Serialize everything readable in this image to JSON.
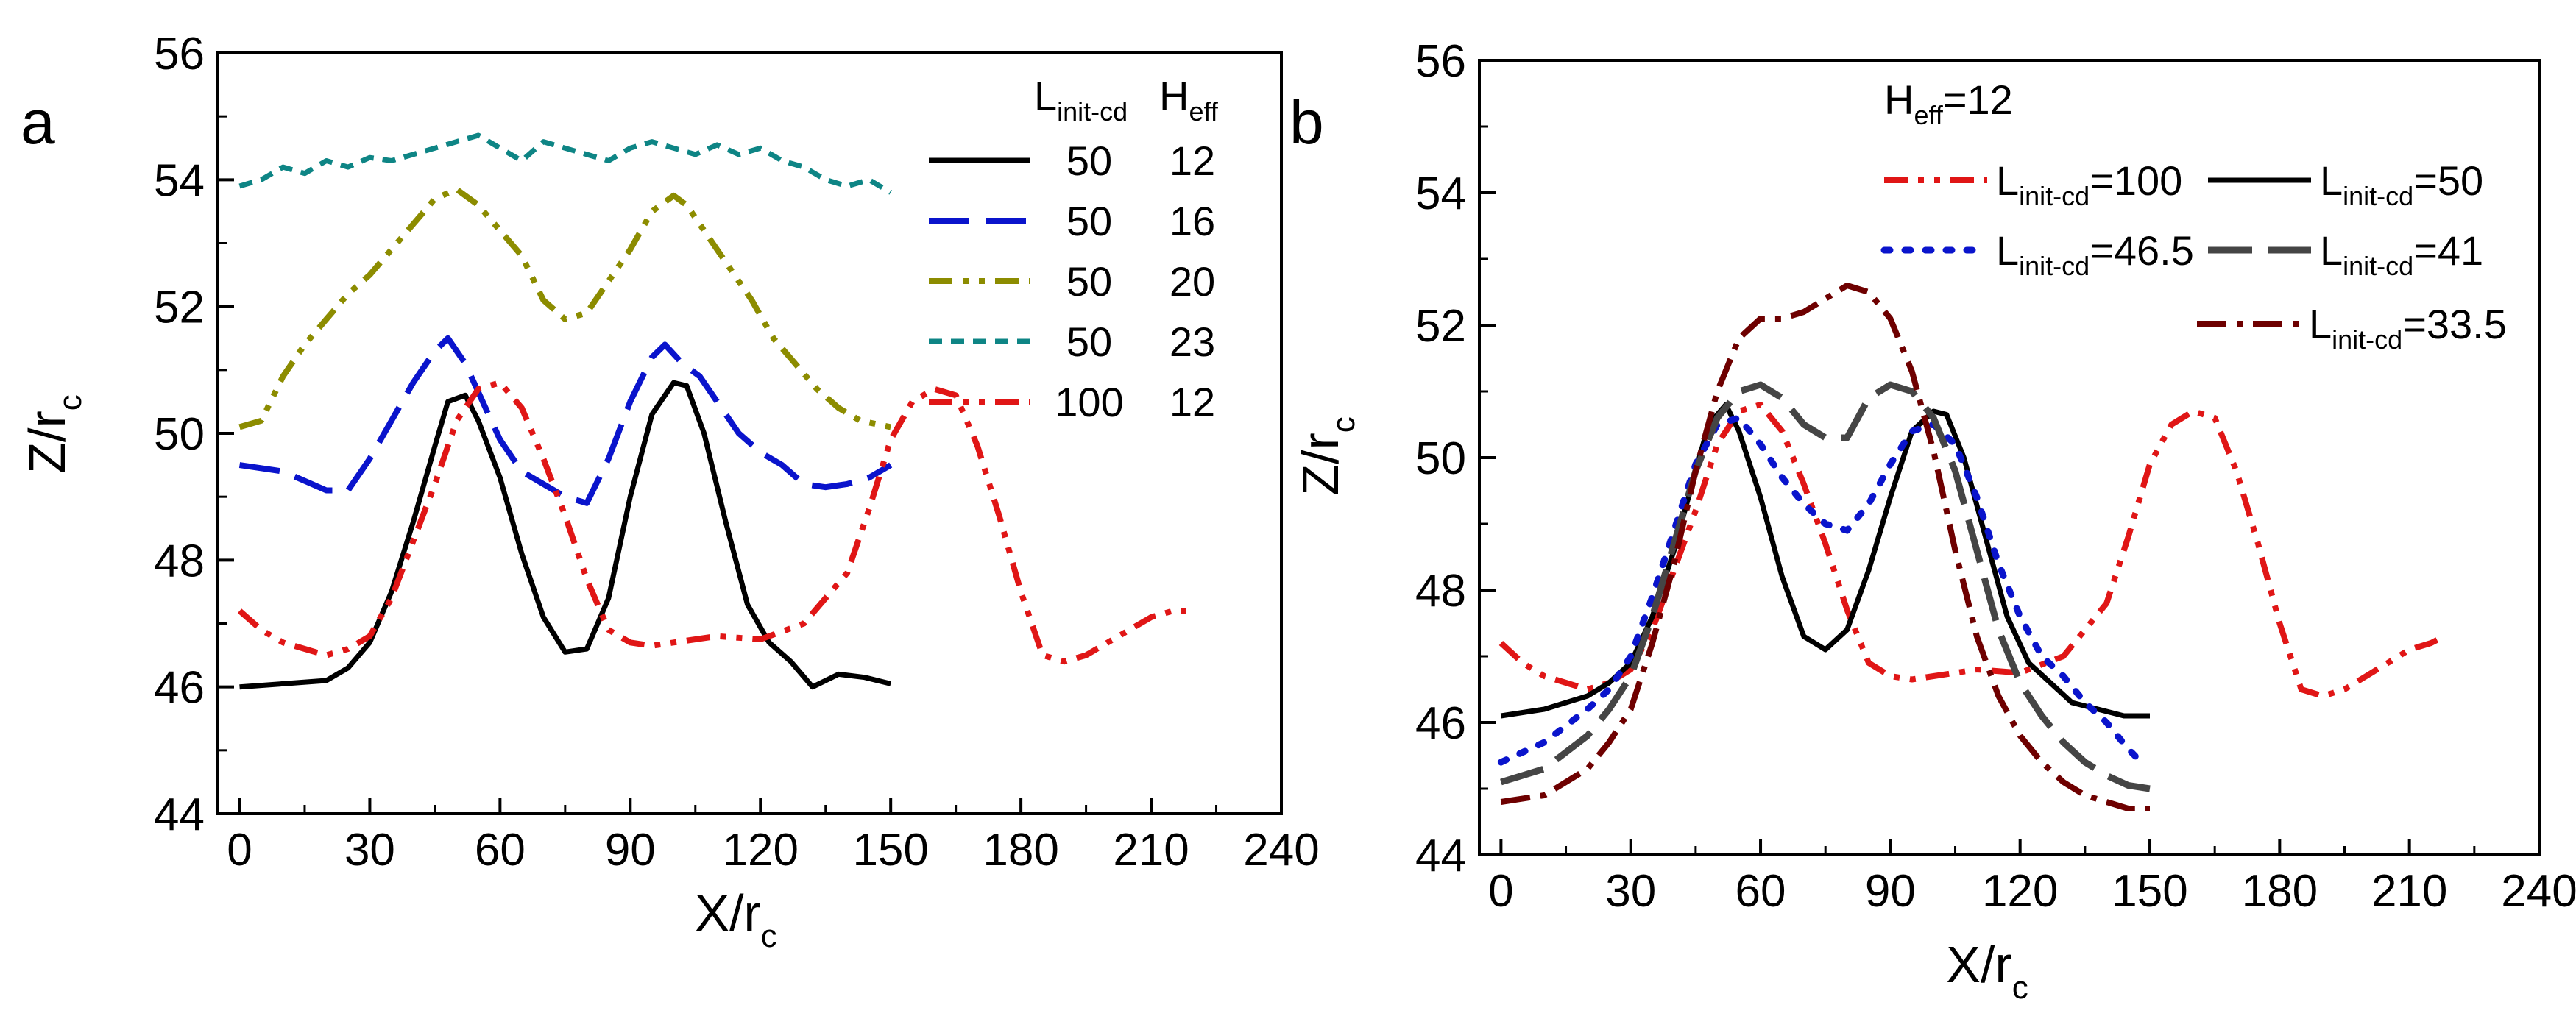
{
  "figure": {
    "panels": [
      {
        "id": "a",
        "letter": "a",
        "legend_headers": {
          "col1_main": "L",
          "col1_sub": "init-cd",
          "col2_main": "H",
          "col2_sub": "eff"
        }
      },
      {
        "id": "b",
        "letter": "b",
        "legend_title": {
          "main": "H",
          "sub": "eff",
          "rest": "=12"
        }
      }
    ]
  },
  "colors": {
    "black": "#000000",
    "blue": "#0a14cc",
    "olive": "#8c8c00",
    "teal": "#0e8585",
    "red": "#e01616",
    "gray": "#454545",
    "darkred": "#6e0000"
  },
  "chart_data": [
    {
      "type": "line",
      "panel": "a",
      "xlabel": "X/r",
      "xlabel_sub": "c",
      "ylabel": "Z/r",
      "ylabel_sub": "c",
      "xlim": [
        -5,
        240
      ],
      "ylim": [
        44,
        56
      ],
      "xticks": [
        0,
        30,
        60,
        90,
        120,
        150,
        180,
        210,
        240
      ],
      "yticks": [
        44,
        46,
        48,
        50,
        52,
        54,
        56
      ],
      "series": [
        {
          "name": "L=50, H=12",
          "legend_col1": "50",
          "legend_col2": "12",
          "color_key": "black",
          "style": "solid",
          "x": [
            0,
            10,
            20,
            25,
            30,
            35,
            40,
            45,
            48,
            52,
            55,
            60,
            65,
            70,
            75,
            80,
            85,
            90,
            95,
            100,
            103,
            107,
            112,
            117,
            122,
            127,
            132,
            138,
            144,
            150
          ],
          "y": [
            46.0,
            46.05,
            46.1,
            46.3,
            46.7,
            47.5,
            48.6,
            49.8,
            50.5,
            50.6,
            50.2,
            49.3,
            48.1,
            47.1,
            46.55,
            46.6,
            47.4,
            49.0,
            50.3,
            50.8,
            50.75,
            50.0,
            48.6,
            47.3,
            46.7,
            46.4,
            46.0,
            46.2,
            46.15,
            46.05
          ]
        },
        {
          "name": "L=50, H=16",
          "legend_col1": "50",
          "legend_col2": "16",
          "color_key": "blue",
          "style": "dash",
          "x": [
            0,
            10,
            20,
            25,
            30,
            35,
            40,
            45,
            48,
            52,
            56,
            60,
            65,
            70,
            75,
            80,
            85,
            90,
            95,
            98,
            102,
            106,
            110,
            115,
            120,
            125,
            130,
            135,
            140,
            145,
            150
          ],
          "y": [
            49.5,
            49.4,
            49.1,
            49.1,
            49.6,
            50.2,
            50.8,
            51.3,
            51.5,
            51.1,
            50.5,
            49.9,
            49.4,
            49.2,
            49.0,
            48.9,
            49.6,
            50.5,
            51.2,
            51.4,
            51.1,
            50.9,
            50.5,
            50.0,
            49.7,
            49.5,
            49.2,
            49.15,
            49.2,
            49.3,
            49.5
          ]
        },
        {
          "name": "L=50, H=20",
          "legend_col1": "50",
          "legend_col2": "20",
          "color_key": "olive",
          "style": "dashdotdot",
          "x": [
            0,
            5,
            10,
            15,
            20,
            25,
            30,
            35,
            40,
            45,
            50,
            55,
            60,
            65,
            70,
            75,
            80,
            85,
            90,
            95,
            100,
            103,
            108,
            113,
            118,
            123,
            128,
            133,
            138,
            143,
            150
          ],
          "y": [
            50.1,
            50.2,
            50.9,
            51.4,
            51.8,
            52.2,
            52.5,
            52.9,
            53.3,
            53.7,
            53.85,
            53.6,
            53.2,
            52.8,
            52.1,
            51.8,
            51.9,
            52.4,
            52.9,
            53.5,
            53.75,
            53.6,
            53.1,
            52.6,
            52.1,
            51.5,
            51.1,
            50.7,
            50.4,
            50.2,
            50.1
          ]
        },
        {
          "name": "L=50, H=23",
          "legend_col1": "50",
          "legend_col2": "23",
          "color_key": "teal",
          "style": "shortdash",
          "x": [
            0,
            5,
            10,
            15,
            20,
            25,
            30,
            35,
            40,
            45,
            50,
            55,
            60,
            65,
            70,
            75,
            80,
            85,
            90,
            95,
            100,
            105,
            110,
            115,
            120,
            125,
            130,
            135,
            140,
            145,
            150
          ],
          "y": [
            53.9,
            54.0,
            54.2,
            54.1,
            54.3,
            54.2,
            54.35,
            54.3,
            54.4,
            54.5,
            54.6,
            54.7,
            54.5,
            54.3,
            54.6,
            54.5,
            54.4,
            54.3,
            54.5,
            54.6,
            54.5,
            54.4,
            54.55,
            54.4,
            54.5,
            54.3,
            54.2,
            54.0,
            53.9,
            54.0,
            53.8
          ]
        },
        {
          "name": "L=100, H=12",
          "legend_col1": "100",
          "legend_col2": "12",
          "color_key": "red",
          "style": "dashdotdot",
          "x": [
            0,
            5,
            10,
            15,
            20,
            25,
            30,
            35,
            40,
            45,
            50,
            55,
            60,
            65,
            70,
            75,
            80,
            85,
            90,
            95,
            100,
            110,
            120,
            130,
            140,
            145,
            150,
            155,
            160,
            165,
            170,
            175,
            180,
            185,
            190,
            195,
            200,
            205,
            210,
            215,
            218
          ],
          "y": [
            47.2,
            46.9,
            46.7,
            46.6,
            46.5,
            46.6,
            46.8,
            47.4,
            48.3,
            49.2,
            50.2,
            50.7,
            50.8,
            50.4,
            49.6,
            48.7,
            47.7,
            46.9,
            46.7,
            46.65,
            46.7,
            46.8,
            46.75,
            47.0,
            47.8,
            48.8,
            49.9,
            50.5,
            50.7,
            50.6,
            49.8,
            48.7,
            47.5,
            46.5,
            46.4,
            46.5,
            46.7,
            46.9,
            47.1,
            47.2,
            47.2
          ]
        }
      ]
    },
    {
      "type": "line",
      "panel": "b",
      "xlabel": "X/r",
      "xlabel_sub": "c",
      "ylabel": "Z/r",
      "ylabel_sub": "c",
      "xlim": [
        -5,
        240
      ],
      "ylim": [
        44,
        56
      ],
      "xticks": [
        0,
        30,
        60,
        90,
        120,
        150,
        180,
        210,
        240
      ],
      "yticks": [
        44,
        46,
        48,
        50,
        52,
        54,
        56
      ],
      "series": [
        {
          "name": "L=100",
          "legend_main": "L",
          "legend_sub": "init-cd",
          "legend_value": "=100",
          "color_key": "red",
          "style": "dashdotdot",
          "x": [
            0,
            5,
            10,
            15,
            20,
            25,
            30,
            35,
            40,
            45,
            50,
            55,
            60,
            65,
            70,
            75,
            80,
            85,
            90,
            95,
            100,
            110,
            120,
            130,
            140,
            145,
            150,
            155,
            160,
            165,
            170,
            175,
            180,
            185,
            190,
            195,
            200,
            205,
            210,
            215,
            218
          ],
          "y": [
            47.2,
            46.9,
            46.7,
            46.6,
            46.5,
            46.6,
            46.8,
            47.4,
            48.3,
            49.2,
            50.2,
            50.7,
            50.8,
            50.4,
            49.6,
            48.7,
            47.7,
            46.9,
            46.7,
            46.65,
            46.7,
            46.8,
            46.75,
            47.0,
            47.8,
            48.8,
            49.9,
            50.5,
            50.7,
            50.6,
            49.8,
            48.7,
            47.5,
            46.5,
            46.4,
            46.5,
            46.7,
            46.9,
            47.1,
            47.2,
            47.3
          ]
        },
        {
          "name": "L=50",
          "legend_main": "L",
          "legend_sub": "init-cd",
          "legend_value": "=50",
          "color_key": "black",
          "style": "solid",
          "x": [
            0,
            10,
            20,
            25,
            30,
            35,
            40,
            45,
            48,
            52,
            55,
            60,
            65,
            70,
            75,
            80,
            85,
            90,
            95,
            100,
            103,
            107,
            112,
            117,
            122,
            127,
            132,
            138,
            144,
            150
          ],
          "y": [
            46.1,
            46.2,
            46.4,
            46.6,
            46.9,
            47.6,
            48.6,
            49.8,
            50.5,
            50.8,
            50.4,
            49.4,
            48.2,
            47.3,
            47.1,
            47.4,
            48.3,
            49.4,
            50.4,
            50.7,
            50.65,
            50.0,
            48.8,
            47.6,
            46.9,
            46.6,
            46.3,
            46.2,
            46.1,
            46.1
          ]
        },
        {
          "name": "L=46.5",
          "legend_main": "L",
          "legend_sub": "init-cd",
          "legend_value": "=46.5",
          "color_key": "blue",
          "style": "dot",
          "x": [
            0,
            10,
            20,
            25,
            30,
            35,
            40,
            45,
            50,
            55,
            60,
            65,
            70,
            75,
            80,
            85,
            90,
            95,
            100,
            105,
            110,
            115,
            120,
            125,
            130,
            135,
            140,
            145,
            148
          ],
          "y": [
            45.4,
            45.7,
            46.2,
            46.5,
            47.0,
            47.9,
            48.9,
            49.9,
            50.5,
            50.6,
            50.2,
            49.7,
            49.3,
            49.0,
            48.9,
            49.3,
            49.9,
            50.4,
            50.5,
            50.2,
            49.4,
            48.4,
            47.6,
            47.0,
            46.7,
            46.3,
            46.0,
            45.6,
            45.4
          ]
        },
        {
          "name": "L=41",
          "legend_main": "L",
          "legend_sub": "init-cd",
          "legend_value": "=41",
          "color_key": "gray",
          "style": "longdash",
          "x": [
            0,
            10,
            20,
            25,
            30,
            35,
            40,
            45,
            50,
            55,
            60,
            65,
            70,
            75,
            80,
            85,
            90,
            95,
            100,
            105,
            110,
            115,
            120,
            125,
            130,
            135,
            140,
            145,
            150
          ],
          "y": [
            45.1,
            45.3,
            45.8,
            46.2,
            46.7,
            47.6,
            48.7,
            49.8,
            50.6,
            51.0,
            51.1,
            50.9,
            50.5,
            50.3,
            50.3,
            50.9,
            51.1,
            51.0,
            50.6,
            49.8,
            48.6,
            47.4,
            46.6,
            46.1,
            45.7,
            45.4,
            45.2,
            45.05,
            45.0
          ]
        },
        {
          "name": "L=33.5",
          "legend_main": "L",
          "legend_sub": "init-cd",
          "legend_value": "=33.5",
          "color_key": "darkred",
          "style": "dashdot",
          "x": [
            0,
            10,
            20,
            25,
            30,
            35,
            40,
            45,
            50,
            55,
            60,
            65,
            70,
            75,
            80,
            85,
            90,
            95,
            100,
            105,
            110,
            115,
            120,
            125,
            130,
            135,
            140,
            145,
            150
          ],
          "y": [
            44.8,
            44.9,
            45.3,
            45.7,
            46.2,
            47.2,
            48.4,
            49.8,
            51.0,
            51.8,
            52.1,
            52.1,
            52.2,
            52.4,
            52.6,
            52.5,
            52.1,
            51.3,
            50.1,
            48.6,
            47.3,
            46.4,
            45.8,
            45.4,
            45.1,
            44.9,
            44.8,
            44.7,
            44.7
          ]
        }
      ]
    }
  ]
}
